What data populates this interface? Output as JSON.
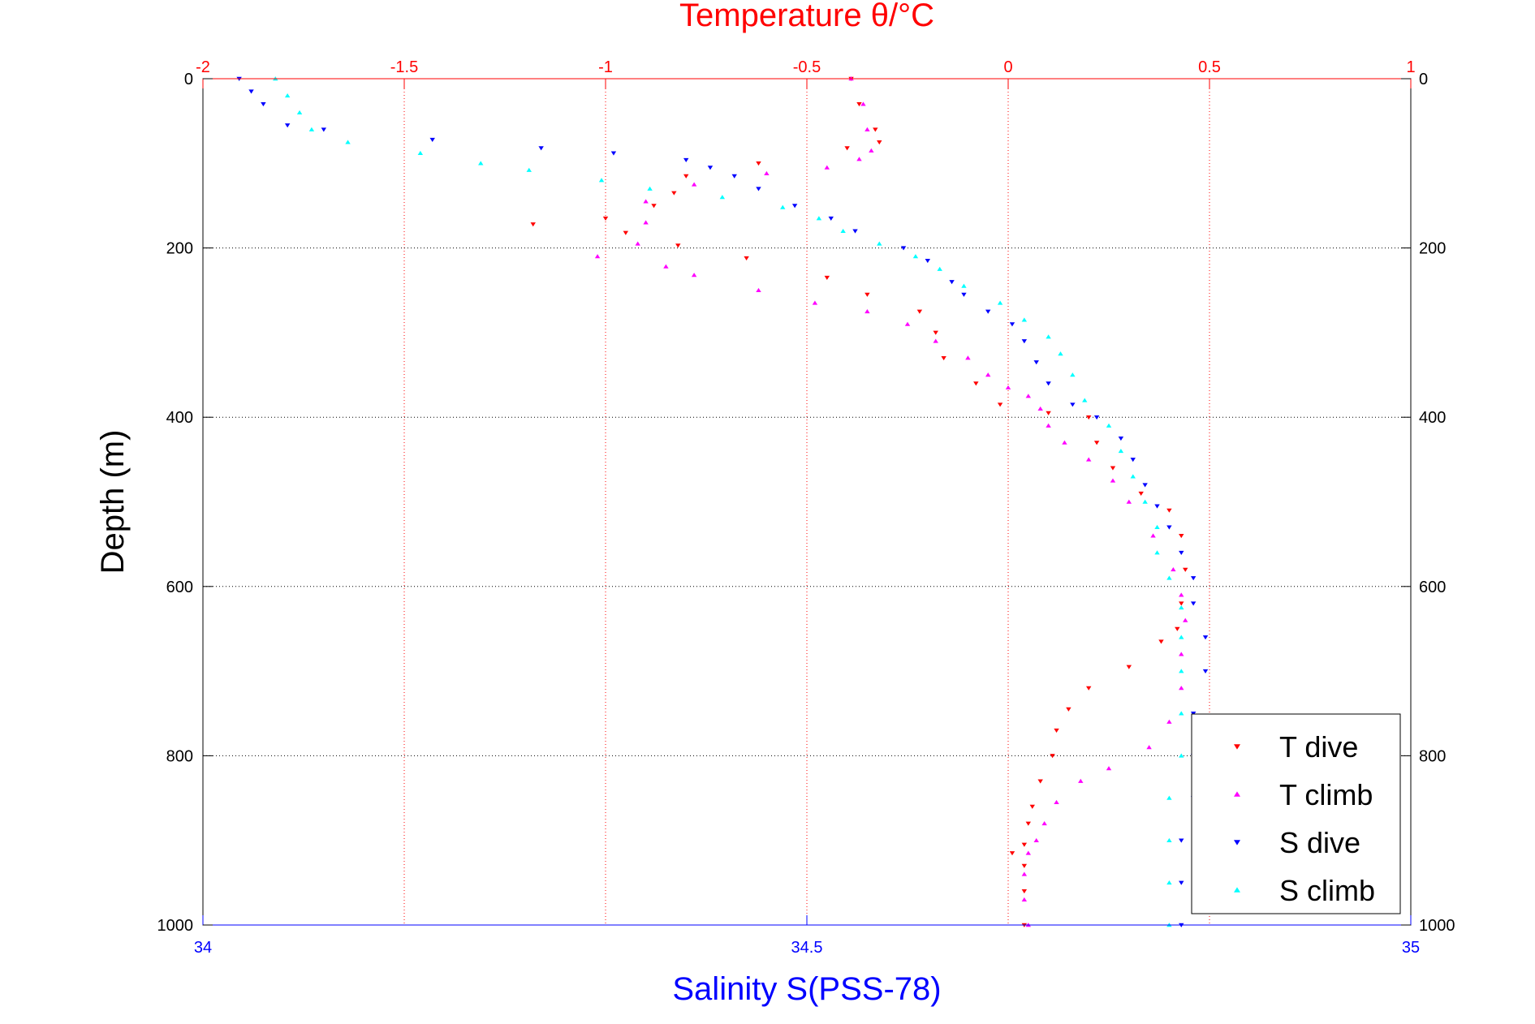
{
  "chart_data": {
    "type": "scatter",
    "top_axis": {
      "label": "Temperature θ/°C",
      "range": [
        -2,
        1
      ],
      "ticks": [
        "-2",
        "-1.5",
        "-1",
        "-0.5",
        "0",
        "0.5",
        "1"
      ],
      "color": "#ff0000"
    },
    "bottom_axis": {
      "label": "Salinity S(PSS-78)",
      "range": [
        34,
        35
      ],
      "ticks": [
        "34",
        "34.5",
        "35"
      ],
      "color": "#0000ff"
    },
    "y_axis": {
      "label": "Depth (m)",
      "range": [
        0,
        1000
      ],
      "reversed": true,
      "ticks": [
        "0",
        "200",
        "400",
        "600",
        "800",
        "1000"
      ]
    },
    "grid": true,
    "legend_position": "bottom-right",
    "series": [
      {
        "name": "T dive",
        "axis": "temperature",
        "color": "#ff0000",
        "marker": "triangle-down",
        "points": [
          [
            -0.39,
            0
          ],
          [
            -0.37,
            30
          ],
          [
            -0.33,
            60
          ],
          [
            -0.32,
            75
          ],
          [
            -0.4,
            82
          ],
          [
            -0.62,
            100
          ],
          [
            -0.8,
            115
          ],
          [
            -0.83,
            135
          ],
          [
            -0.88,
            150
          ],
          [
            -1.0,
            165
          ],
          [
            -1.18,
            172
          ],
          [
            -0.95,
            182
          ],
          [
            -0.82,
            197
          ],
          [
            -0.65,
            212
          ],
          [
            -0.45,
            235
          ],
          [
            -0.35,
            255
          ],
          [
            -0.22,
            275
          ],
          [
            -0.18,
            300
          ],
          [
            -0.16,
            330
          ],
          [
            -0.08,
            360
          ],
          [
            -0.02,
            385
          ],
          [
            0.1,
            395
          ],
          [
            0.2,
            400
          ],
          [
            0.22,
            430
          ],
          [
            0.26,
            460
          ],
          [
            0.33,
            490
          ],
          [
            0.4,
            510
          ],
          [
            0.43,
            540
          ],
          [
            0.44,
            580
          ],
          [
            0.43,
            620
          ],
          [
            0.42,
            650
          ],
          [
            0.38,
            665
          ],
          [
            0.3,
            695
          ],
          [
            0.2,
            720
          ],
          [
            0.15,
            745
          ],
          [
            0.12,
            770
          ],
          [
            0.11,
            800
          ],
          [
            0.08,
            830
          ],
          [
            0.06,
            860
          ],
          [
            0.05,
            880
          ],
          [
            0.04,
            905
          ],
          [
            0.01,
            915
          ],
          [
            0.04,
            930
          ],
          [
            0.04,
            960
          ],
          [
            0.04,
            1000
          ]
        ]
      },
      {
        "name": "T climb",
        "axis": "temperature",
        "color": "#ff00ff",
        "marker": "triangle-up",
        "points": [
          [
            -0.39,
            0
          ],
          [
            -0.36,
            30
          ],
          [
            -0.35,
            60
          ],
          [
            -0.34,
            85
          ],
          [
            -0.37,
            95
          ],
          [
            -0.45,
            105
          ],
          [
            -0.6,
            112
          ],
          [
            -0.78,
            125
          ],
          [
            -0.9,
            145
          ],
          [
            -0.9,
            170
          ],
          [
            -0.92,
            195
          ],
          [
            -1.02,
            210
          ],
          [
            -0.85,
            222
          ],
          [
            -0.78,
            232
          ],
          [
            -0.62,
            250
          ],
          [
            -0.48,
            265
          ],
          [
            -0.35,
            275
          ],
          [
            -0.25,
            290
          ],
          [
            -0.18,
            310
          ],
          [
            -0.1,
            330
          ],
          [
            -0.05,
            350
          ],
          [
            0.0,
            365
          ],
          [
            0.05,
            375
          ],
          [
            0.08,
            390
          ],
          [
            0.1,
            410
          ],
          [
            0.14,
            430
          ],
          [
            0.2,
            450
          ],
          [
            0.26,
            475
          ],
          [
            0.3,
            500
          ],
          [
            0.36,
            540
          ],
          [
            0.41,
            580
          ],
          [
            0.43,
            610
          ],
          [
            0.44,
            640
          ],
          [
            0.43,
            680
          ],
          [
            0.43,
            720
          ],
          [
            0.4,
            760
          ],
          [
            0.35,
            790
          ],
          [
            0.25,
            815
          ],
          [
            0.18,
            830
          ],
          [
            0.12,
            855
          ],
          [
            0.09,
            880
          ],
          [
            0.07,
            900
          ],
          [
            0.05,
            915
          ],
          [
            0.04,
            940
          ],
          [
            0.04,
            970
          ],
          [
            0.05,
            1000
          ]
        ]
      },
      {
        "name": "S dive",
        "axis": "salinity",
        "color": "#0000ff",
        "marker": "triangle-down",
        "points": [
          [
            34.03,
            0
          ],
          [
            34.04,
            15
          ],
          [
            34.05,
            30
          ],
          [
            34.07,
            55
          ],
          [
            34.1,
            60
          ],
          [
            34.19,
            72
          ],
          [
            34.28,
            82
          ],
          [
            34.34,
            88
          ],
          [
            34.4,
            96
          ],
          [
            34.42,
            105
          ],
          [
            34.44,
            115
          ],
          [
            34.46,
            130
          ],
          [
            34.49,
            150
          ],
          [
            34.52,
            165
          ],
          [
            34.54,
            180
          ],
          [
            34.58,
            200
          ],
          [
            34.6,
            215
          ],
          [
            34.62,
            240
          ],
          [
            34.63,
            255
          ],
          [
            34.65,
            275
          ],
          [
            34.67,
            290
          ],
          [
            34.68,
            310
          ],
          [
            34.69,
            335
          ],
          [
            34.7,
            360
          ],
          [
            34.72,
            385
          ],
          [
            34.74,
            400
          ],
          [
            34.76,
            425
          ],
          [
            34.77,
            450
          ],
          [
            34.78,
            480
          ],
          [
            34.79,
            505
          ],
          [
            34.8,
            530
          ],
          [
            34.81,
            560
          ],
          [
            34.82,
            590
          ],
          [
            34.82,
            620
          ],
          [
            34.83,
            660
          ],
          [
            34.83,
            700
          ],
          [
            34.82,
            750
          ],
          [
            34.82,
            800
          ],
          [
            34.82,
            850
          ],
          [
            34.81,
            900
          ],
          [
            34.81,
            950
          ],
          [
            34.81,
            1000
          ]
        ]
      },
      {
        "name": "S climb",
        "axis": "salinity",
        "color": "#00ffff",
        "marker": "triangle-up",
        "points": [
          [
            34.06,
            0
          ],
          [
            34.07,
            20
          ],
          [
            34.08,
            40
          ],
          [
            34.09,
            60
          ],
          [
            34.12,
            75
          ],
          [
            34.18,
            88
          ],
          [
            34.23,
            100
          ],
          [
            34.27,
            108
          ],
          [
            34.33,
            120
          ],
          [
            34.37,
            130
          ],
          [
            34.43,
            140
          ],
          [
            34.48,
            152
          ],
          [
            34.51,
            165
          ],
          [
            34.53,
            180
          ],
          [
            34.56,
            195
          ],
          [
            34.59,
            210
          ],
          [
            34.61,
            225
          ],
          [
            34.63,
            245
          ],
          [
            34.66,
            265
          ],
          [
            34.68,
            285
          ],
          [
            34.7,
            305
          ],
          [
            34.71,
            325
          ],
          [
            34.72,
            350
          ],
          [
            34.73,
            380
          ],
          [
            34.75,
            410
          ],
          [
            34.76,
            440
          ],
          [
            34.77,
            470
          ],
          [
            34.78,
            500
          ],
          [
            34.79,
            530
          ],
          [
            34.79,
            560
          ],
          [
            34.8,
            590
          ],
          [
            34.81,
            625
          ],
          [
            34.81,
            660
          ],
          [
            34.81,
            700
          ],
          [
            34.81,
            750
          ],
          [
            34.81,
            800
          ],
          [
            34.8,
            850
          ],
          [
            34.8,
            900
          ],
          [
            34.8,
            950
          ],
          [
            34.8,
            1000
          ]
        ]
      }
    ]
  }
}
